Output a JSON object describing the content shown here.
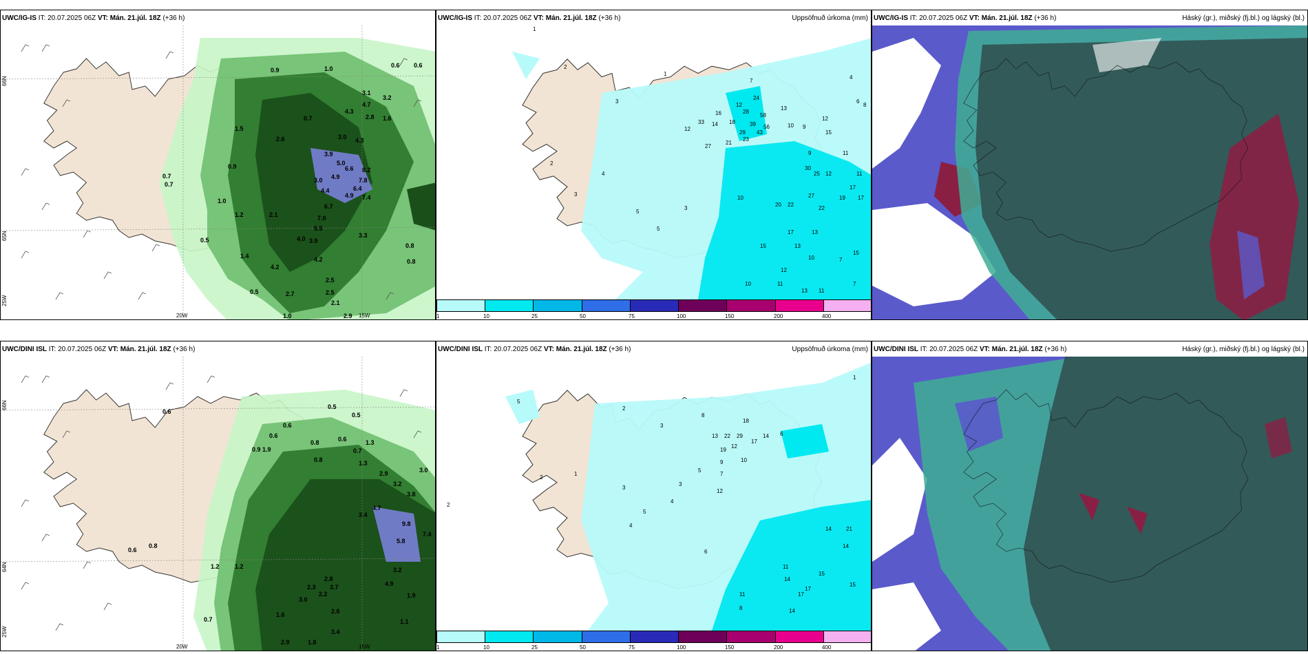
{
  "colors": {
    "land": "#f2e4d4",
    "precip_light": "#b7fafa",
    "precip_mid": "#00e8f0",
    "green_light": "#c8f5c8",
    "green_mid": "#4f9a4f",
    "green_dark": "#1d5a1d",
    "cloud_high_dark": "#2f4d4d",
    "cloud_blue": "#5a5acb",
    "cloud_teal": "#3fae94",
    "cloud_red": "#8a1f44"
  },
  "panels": {
    "ig_wind": {
      "model": "UWC/IG-IS",
      "it_label": "IT: 20.07.2025 06Z",
      "vt_label": "VT: Mán. 21.júl. 18Z",
      "lead": "(+36 h)",
      "lon_labels": [
        "20W",
        "15W"
      ],
      "lat_labels": [
        "66N",
        "65N",
        "25W"
      ],
      "values": [
        "0.9",
        "1.0",
        "3.1",
        "3.2",
        "4.3",
        "4.7",
        "2.8",
        "1.6",
        "0.7",
        "1.5",
        "2.6",
        "3.0",
        "4.3",
        "3.9",
        "5.0",
        "8.2",
        "6.6",
        "7.8",
        "4.9",
        "6.4",
        "4.4",
        "3.0",
        "0.9",
        "0.7",
        "1.0",
        "6.7",
        "4.9",
        "7.4",
        "1.2",
        "2.1",
        "4.0",
        "7.0",
        "5.5",
        "3.9",
        "3.3",
        "4.2",
        "1.4",
        "4.2",
        "0.5",
        "2.5",
        "2.5",
        "2.7",
        "2.1",
        "0.8",
        "0.8",
        "2.9",
        "1.0",
        "0.6",
        "0.6",
        "0.5",
        "0.7"
      ]
    },
    "ig_precip": {
      "model": "UWC/IG-IS",
      "it_label": "IT: 20.07.2025 06Z",
      "vt_label": "VT: Mán. 21.júl. 18Z",
      "lead": "(+36 h)",
      "title_right": "Uppsöfnuð úrkoma (mm)",
      "values": [
        "1",
        "2",
        "1",
        "3",
        "7",
        "4",
        "6",
        "8",
        "24",
        "12",
        "16",
        "28",
        "58",
        "13",
        "33",
        "14",
        "18",
        "39",
        "56",
        "12",
        "21",
        "29",
        "43",
        "10",
        "27",
        "23",
        "9",
        "12",
        "15",
        "11",
        "12",
        "11",
        "9",
        "30",
        "25",
        "17",
        "27",
        "22",
        "19",
        "17",
        "20",
        "22",
        "10",
        "17",
        "13",
        "15",
        "13",
        "10",
        "7",
        "12",
        "15",
        "10",
        "11",
        "13",
        "11",
        "7",
        "5",
        "2",
        "3",
        "4",
        "5",
        "3"
      ],
      "colorbar_ticks": [
        "1",
        "10",
        "25",
        "50",
        "75",
        "100",
        "150",
        "200",
        "400"
      ]
    },
    "ig_cloud": {
      "model": "UWC/IG-IS",
      "it_label": "IT: 20.07.2025 06Z",
      "vt_label": "VT: Mán. 21.júl. 18Z",
      "lead": "(+36 h)",
      "title_right": "Háský (gr.), miðský (fj.bl.) og lágský (bl.)"
    },
    "dini_wind": {
      "model": "UWC/DINI ISL",
      "it_label": "IT: 20.07.2025 06Z",
      "vt_label": "VT: Mán. 21.júl. 18Z",
      "lead": "(+36 h)",
      "lon_labels": [
        "20W",
        "15W"
      ],
      "lat_labels": [
        "66N",
        "64N",
        "25W"
      ],
      "values": [
        "0.5",
        "0.6",
        "0.5",
        "0.6",
        "0.8",
        "0.6",
        "0.9",
        "1.9",
        "0.8",
        "1.3",
        "0.7",
        "1.3",
        "2.9",
        "3.2",
        "3.0",
        "3.8",
        "4.7",
        "3.4",
        "9.8",
        "7.4",
        "5.8",
        "3.2",
        "4.9",
        "1.9",
        "1.2",
        "1.1",
        "2.2",
        "2.8",
        "3.7",
        "2.6",
        "2.9",
        "1.8",
        "3.4",
        "0.6",
        "0.8",
        "0.6",
        "1.2",
        "0.7",
        "1.6",
        "3.0",
        "2.3"
      ]
    },
    "dini_precip": {
      "model": "UWC/DINI ISL",
      "it_label": "IT: 20.07.2025 06Z",
      "vt_label": "VT: Mán. 21.júl. 18Z",
      "lead": "(+36 h)",
      "title_right": "Uppsöfnuð úrkoma (mm)",
      "values": [
        "1",
        "5",
        "2",
        "3",
        "8",
        "18",
        "13",
        "22",
        "29",
        "17",
        "14",
        "6",
        "19",
        "12",
        "10",
        "9",
        "7",
        "5",
        "3",
        "4",
        "12",
        "14",
        "21",
        "14",
        "11",
        "15",
        "14",
        "17",
        "17",
        "15",
        "11",
        "14",
        "8",
        "6",
        "4",
        "5",
        "3",
        "2",
        "1",
        "2"
      ],
      "colorbar_ticks": [
        "1",
        "10",
        "25",
        "50",
        "75",
        "100",
        "150",
        "200",
        "400"
      ]
    },
    "dini_cloud": {
      "model": "UWC/DINI ISL",
      "it_label": "IT: 20.07.2025 06Z",
      "vt_label": "VT: Mán. 21.júl. 18Z",
      "lead": "(+36 h)",
      "title_right": "Háský (gr.), miðský (fj.bl.) og lágský (bl.)"
    }
  },
  "precip_colors": [
    "#b7fafa",
    "#00e8f0",
    "#00b8e8",
    "#2f6ee8",
    "#2a2ab8",
    "#6e005a",
    "#a8006e",
    "#e8008c",
    "#f4b0f0"
  ]
}
